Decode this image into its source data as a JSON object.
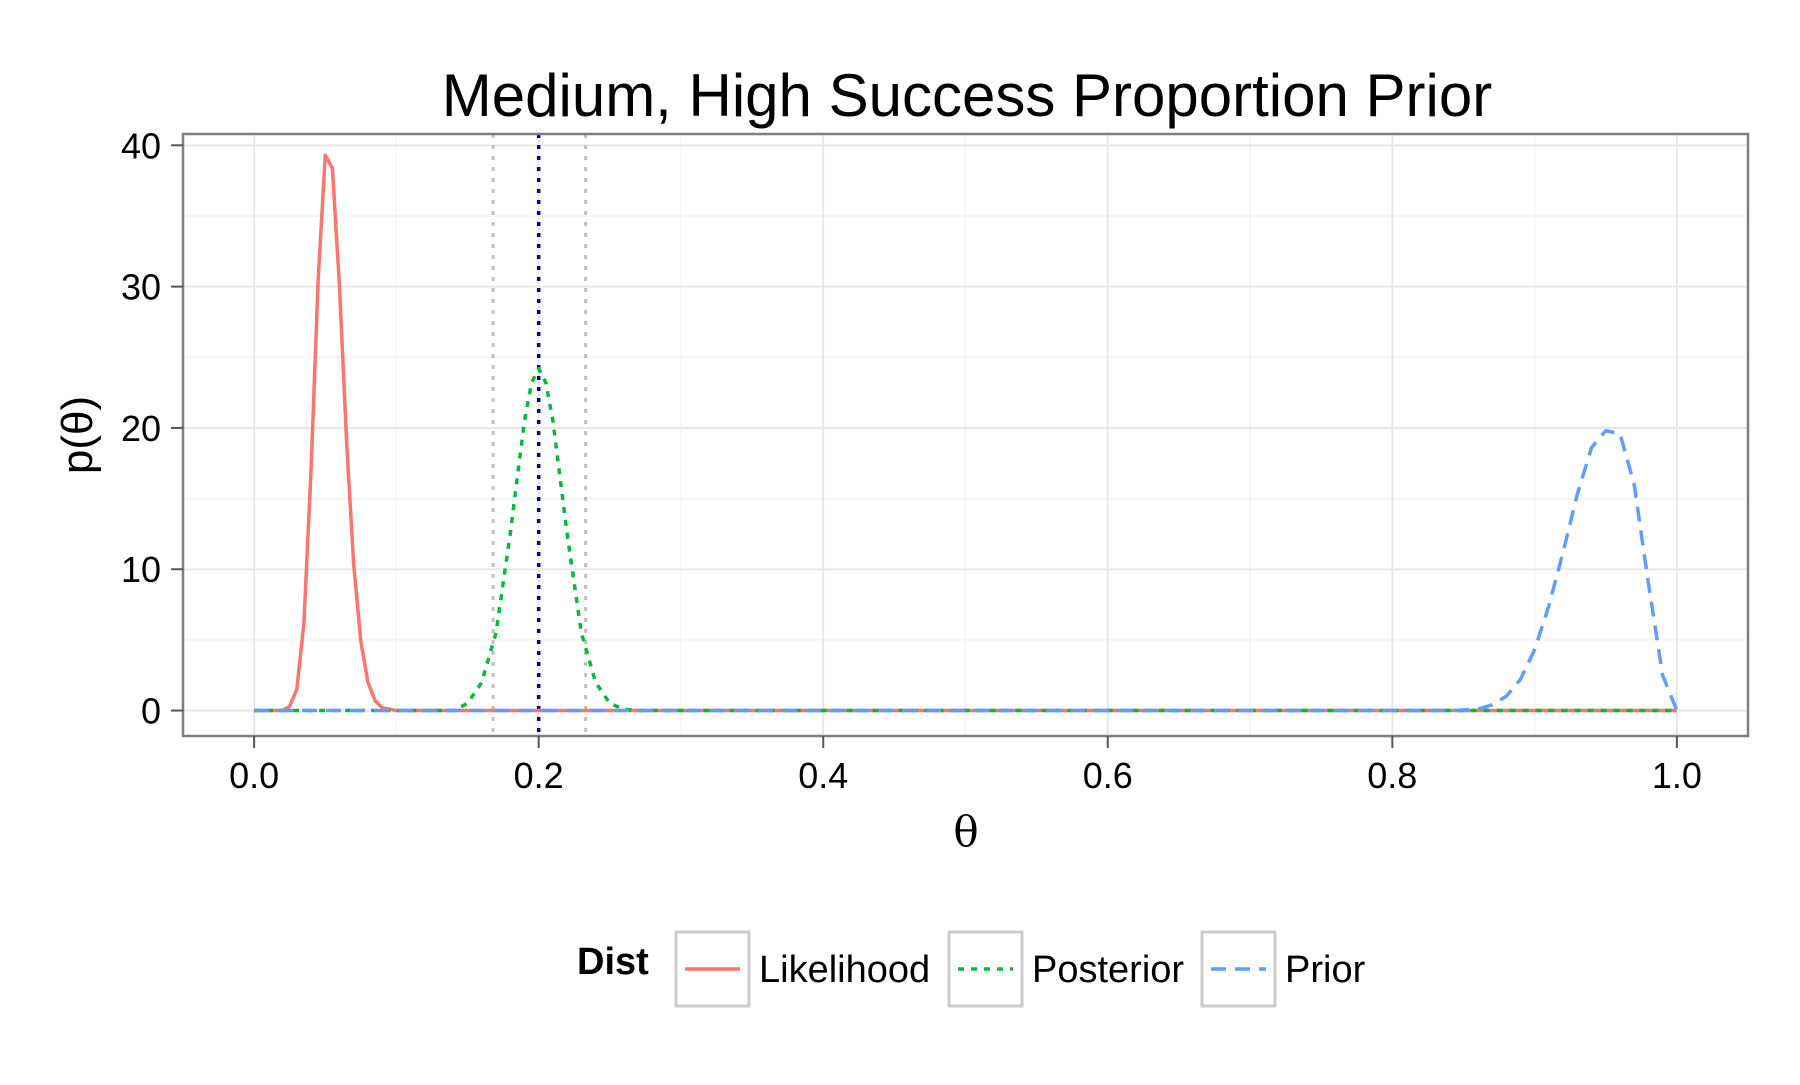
{
  "chart_data": {
    "type": "line",
    "title": "Medium, High Success Proportion Prior",
    "xlabel": "θ",
    "ylabel": "p(θ)",
    "xlim": [
      -0.05,
      1.05
    ],
    "ylim": [
      -1.8,
      40.8
    ],
    "x_ticks": [
      0.0,
      0.2,
      0.4,
      0.6,
      0.8,
      1.0
    ],
    "x_tick_labels": [
      "0.0",
      "0.2",
      "0.4",
      "0.6",
      "0.8",
      "1.0"
    ],
    "y_ticks": [
      0,
      10,
      20,
      30,
      40
    ],
    "y_tick_labels": [
      "0",
      "10",
      "20",
      "30",
      "40"
    ],
    "grid": true,
    "legend": {
      "title": "Dist",
      "placement": "bottom",
      "entries": [
        "Likelihood",
        "Posterior",
        "Prior"
      ]
    },
    "series": [
      {
        "name": "Likelihood",
        "color": "#F8766D",
        "dash": "solid",
        "x": [
          0.0,
          0.02,
          0.025,
          0.03,
          0.035,
          0.04,
          0.045,
          0.05,
          0.055,
          0.06,
          0.065,
          0.07,
          0.075,
          0.08,
          0.085,
          0.09,
          0.1,
          0.12,
          1.0
        ],
        "y": [
          0,
          0,
          0.3,
          1.5,
          6.2,
          17.0,
          30.5,
          39.3,
          38.4,
          30.0,
          19.0,
          10.3,
          4.9,
          2.0,
          0.7,
          0.2,
          0,
          0,
          0
        ]
      },
      {
        "name": "Posterior",
        "color": "#00BA38",
        "dash": "dotted",
        "x": [
          0.0,
          0.14,
          0.15,
          0.16,
          0.17,
          0.18,
          0.19,
          0.195,
          0.2,
          0.205,
          0.21,
          0.22,
          0.23,
          0.24,
          0.25,
          0.26,
          0.27,
          1.0
        ],
        "y": [
          0,
          0,
          0.5,
          2.0,
          5.5,
          12.5,
          20.5,
          23.2,
          24.2,
          23.2,
          20.5,
          12.5,
          5.5,
          2.0,
          0.5,
          0.1,
          0,
          0
        ]
      },
      {
        "name": "Prior",
        "color": "#619CFF",
        "dash": "dashed",
        "x": [
          0.0,
          0.84,
          0.86,
          0.87,
          0.88,
          0.89,
          0.9,
          0.91,
          0.92,
          0.93,
          0.94,
          0.95,
          0.96,
          0.97,
          0.98,
          0.99,
          1.0
        ],
        "y": [
          0,
          0,
          0.1,
          0.4,
          1.0,
          2.2,
          4.3,
          7.4,
          11.2,
          15.3,
          18.6,
          19.8,
          19.6,
          16.0,
          9.0,
          2.5,
          0
        ]
      }
    ],
    "vertical_lines": [
      {
        "x": 0.2,
        "color": "#000080",
        "dash": "dotted"
      },
      {
        "x": 0.168,
        "color": "#bfbfbf",
        "dash": "dotted"
      },
      {
        "x": 0.233,
        "color": "#bfbfbf",
        "dash": "dotted"
      }
    ]
  }
}
